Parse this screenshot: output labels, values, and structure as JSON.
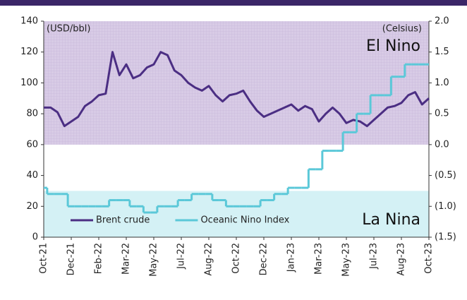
{
  "chart_data": {
    "type": "line",
    "ylabel": "(USD/bbl)",
    "y2label": "(Celsius)",
    "categories": [
      "Oct-21",
      null,
      null,
      null,
      "Dec-21",
      null,
      null,
      null,
      "Feb-22",
      null,
      null,
      null,
      "Mar-22",
      null,
      null,
      null,
      "May-22",
      null,
      null,
      null,
      "Jul-22",
      null,
      null,
      null,
      "Aug-22",
      null,
      null,
      null,
      "Oct-22",
      null,
      null,
      null,
      "Dec-22",
      null,
      null,
      null,
      "Jan-23",
      null,
      null,
      null,
      "Mar-23",
      null,
      null,
      null,
      "May-23",
      null,
      null,
      null,
      "Jul-23",
      null,
      null,
      null,
      "Aug-23",
      null,
      null,
      null,
      "Oct-23"
    ],
    "series": [
      {
        "name": "Brent crude",
        "color": "#4b2e83",
        "values": [
          84,
          84,
          81,
          72,
          75,
          78,
          85,
          88,
          92,
          93,
          120,
          105,
          112,
          103,
          105,
          110,
          112,
          120,
          118,
          108,
          105,
          100,
          97,
          95,
          98,
          92,
          88,
          92,
          93,
          95,
          88,
          82,
          78,
          80,
          82,
          84,
          86,
          82,
          85,
          83,
          75,
          80,
          84,
          80,
          74,
          76,
          75,
          72,
          76,
          80,
          84,
          85,
          87,
          92,
          94,
          86,
          90
        ]
      },
      {
        "name": "Oceanic Nino Index",
        "color": "#5bc8d8",
        "axis": "y2",
        "step": true,
        "values": [
          -0.7,
          -0.8,
          -0.8,
          -0.8,
          -1.0,
          -1.0,
          -1.0,
          -1.0,
          -1.0,
          -1.0,
          -0.9,
          -0.9,
          -0.9,
          -1.0,
          -1.0,
          -1.1,
          -1.1,
          -1.0,
          -1.0,
          -1.0,
          -0.9,
          -0.9,
          -0.8,
          -0.8,
          -0.8,
          -0.9,
          -0.9,
          -1.0,
          -1.0,
          -1.0,
          -1.0,
          -1.0,
          -0.9,
          -0.9,
          -0.8,
          -0.8,
          -0.7,
          -0.7,
          -0.7,
          -0.4,
          -0.4,
          -0.1,
          -0.1,
          -0.1,
          0.2,
          0.2,
          0.5,
          0.5,
          0.8,
          0.8,
          0.8,
          1.1,
          1.1,
          1.3,
          1.3,
          1.3,
          1.3
        ]
      }
    ],
    "ylim": [
      0,
      140
    ],
    "yticks": [
      0,
      20,
      40,
      60,
      80,
      100,
      120,
      140
    ],
    "y2lim": [
      -1.5,
      2.0
    ],
    "y2ticks": [
      {
        "value": -1.5,
        "label": "(1.5)"
      },
      {
        "value": -1.0,
        "label": "(1.0)"
      },
      {
        "value": -0.5,
        "label": "(0.5)"
      },
      {
        "value": 0,
        "label": "0.0"
      },
      0.5,
      {
        "value": 1.0,
        "label": "1.0"
      },
      1.5,
      {
        "value": 2.0,
        "label": "2.0"
      }
    ],
    "regions": [
      {
        "label": "El Nino",
        "axis": "y2",
        "range": [
          0,
          2.0
        ],
        "color": "#d8cbe6"
      },
      {
        "label": "La Nina",
        "axis": "y2",
        "range": [
          -1.5,
          -0.75
        ],
        "color": "#d4f1f5"
      }
    ],
    "legend": "bottom-left"
  }
}
